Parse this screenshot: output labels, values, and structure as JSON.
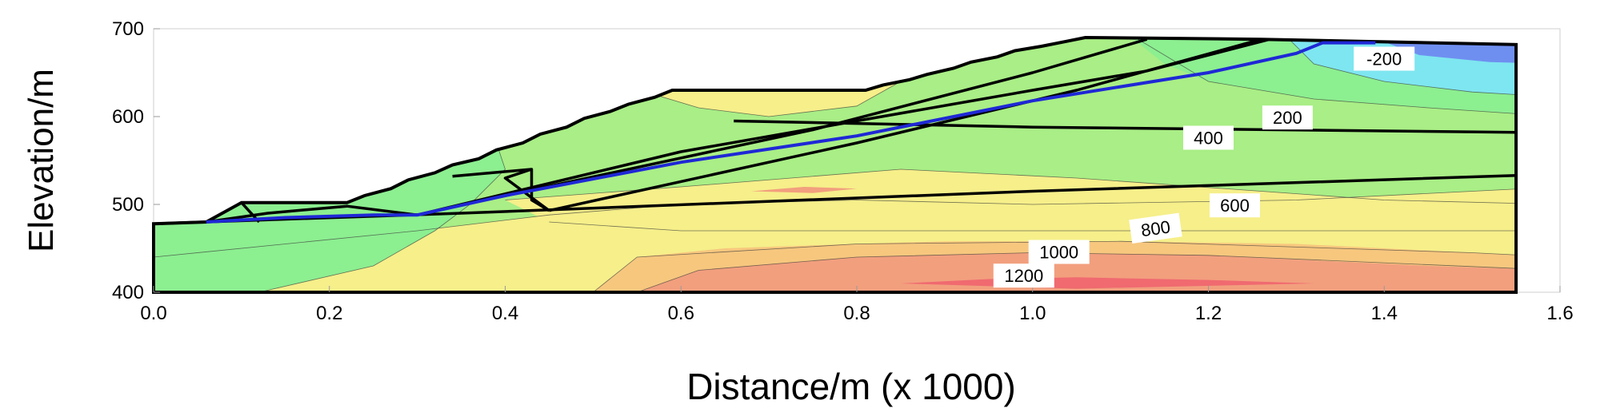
{
  "chart_data": {
    "type": "contour",
    "xlabel": "Distance/m (x  1000)",
    "ylabel": "Elevation/m",
    "xlim": [
      0.0,
      1.6
    ],
    "ylim": [
      400,
      700
    ],
    "xticks": [
      "0.0",
      "0.2",
      "0.4",
      "0.6",
      "0.8",
      "1.0",
      "1.2",
      "1.4",
      "1.6"
    ],
    "yticks": [
      "400",
      "500",
      "600",
      "700"
    ],
    "contour_labels": [
      {
        "text": "-200",
        "x": 1.4,
        "y": 665,
        "angle": 0
      },
      {
        "text": "200",
        "x": 1.29,
        "y": 598,
        "angle": 0
      },
      {
        "text": "400",
        "x": 1.2,
        "y": 575,
        "angle": 0
      },
      {
        "text": "600",
        "x": 1.23,
        "y": 498,
        "angle": 0
      },
      {
        "text": "800",
        "x": 1.14,
        "y": 472,
        "angle": -8
      },
      {
        "text": "1000",
        "x": 1.03,
        "y": 445,
        "angle": 0
      },
      {
        "text": "1200",
        "x": 0.99,
        "y": 418,
        "angle": 0
      }
    ],
    "slope_profile": [
      [
        0.0,
        478
      ],
      [
        0.06,
        480
      ],
      [
        0.1,
        502
      ],
      [
        0.22,
        502
      ],
      [
        0.24,
        510
      ],
      [
        0.27,
        518
      ],
      [
        0.29,
        528
      ],
      [
        0.32,
        536
      ],
      [
        0.34,
        545
      ],
      [
        0.37,
        552
      ],
      [
        0.39,
        562
      ],
      [
        0.42,
        570
      ],
      [
        0.44,
        580
      ],
      [
        0.47,
        588
      ],
      [
        0.49,
        598
      ],
      [
        0.52,
        606
      ],
      [
        0.54,
        614
      ],
      [
        0.57,
        622
      ],
      [
        0.59,
        630
      ],
      [
        0.81,
        630
      ],
      [
        0.83,
        636
      ],
      [
        0.86,
        642
      ],
      [
        0.88,
        648
      ],
      [
        0.91,
        655
      ],
      [
        0.93,
        662
      ],
      [
        0.96,
        668
      ],
      [
        0.98,
        675
      ],
      [
        1.01,
        680
      ],
      [
        1.04,
        686
      ],
      [
        1.06,
        690
      ],
      [
        1.26,
        688
      ],
      [
        1.55,
        682
      ],
      [
        1.55,
        400
      ],
      [
        0.0,
        400
      ]
    ],
    "stratum_lines": [
      [
        [
          0.0,
          478
        ],
        [
          0.35,
          490
        ],
        [
          1.0,
          515
        ],
        [
          1.55,
          533
        ]
      ],
      [
        [
          0.66,
          595
        ],
        [
          1.0,
          588
        ],
        [
          1.55,
          582
        ]
      ],
      [
        [
          0.3,
          488
        ],
        [
          0.6,
          560
        ],
        [
          1.0,
          630
        ],
        [
          1.13,
          652
        ],
        [
          1.27,
          688
        ]
      ],
      [
        [
          0.45,
          493
        ],
        [
          0.8,
          570
        ],
        [
          1.05,
          630
        ],
        [
          1.26,
          688
        ]
      ],
      [
        [
          0.4,
          510
        ],
        [
          0.75,
          585
        ],
        [
          1.0,
          650
        ],
        [
          1.13,
          688
        ]
      ],
      [
        [
          0.45,
          493
        ],
        [
          0.4,
          530
        ],
        [
          0.43,
          540
        ]
      ],
      [
        [
          0.34,
          532
        ],
        [
          0.43,
          540
        ],
        [
          0.43,
          505
        ],
        [
          0.45,
          493
        ]
      ],
      [
        [
          0.1,
          502
        ],
        [
          0.12,
          480
        ]
      ],
      [
        [
          0.06,
          480
        ],
        [
          0.13,
          490
        ],
        [
          0.22,
          498
        ],
        [
          0.3,
          488
        ]
      ]
    ],
    "slip_surface": [
      [
        0.06,
        480
      ],
      [
        0.15,
        485
      ],
      [
        0.25,
        488
      ],
      [
        0.3,
        488
      ],
      [
        0.4,
        510
      ],
      [
        0.6,
        548
      ],
      [
        0.8,
        578
      ],
      [
        1.0,
        618
      ],
      [
        1.2,
        650
      ],
      [
        1.3,
        672
      ],
      [
        1.33,
        684
      ],
      [
        1.39,
        684
      ]
    ],
    "colors": {
      "ultra_low": "#6f8ff0",
      "very_low": "#7ee6f0",
      "low": "#8cef90",
      "mid": "#a9ee86",
      "mid_high": "#f6ef8a",
      "high": "#f7c77e",
      "very_high": "#f29f7e",
      "peak": "#f06a70",
      "slip_line": "#1f28d6",
      "boundary": "#000000"
    }
  }
}
